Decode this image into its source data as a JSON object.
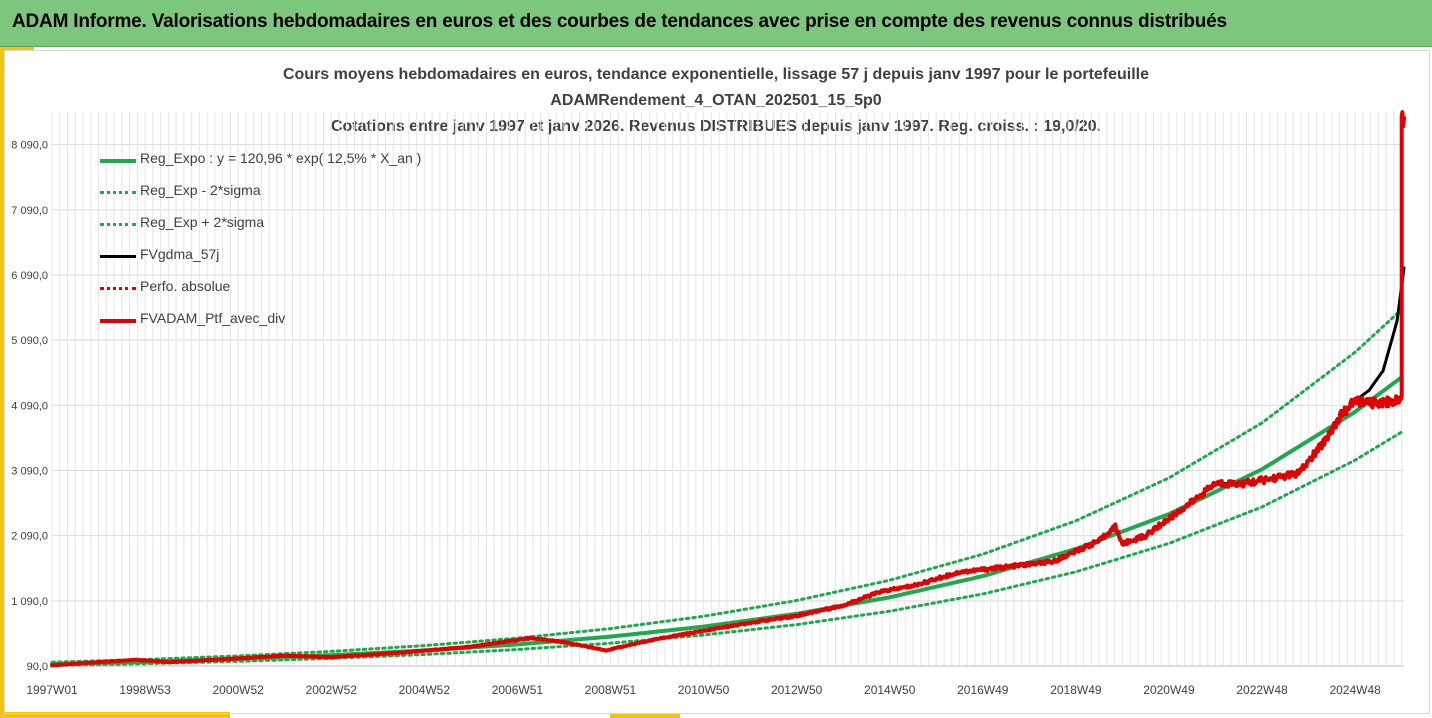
{
  "banner": {
    "title": "ADAM Informe. Valorisations hebdomadaires en euros et des courbes de tendances avec prise en compte des revenus connus distribués"
  },
  "colors": {
    "banner": "#7dc67d",
    "accent": "#f1c40f",
    "green": "#1fa84f",
    "black": "#000000",
    "red": "#e00000",
    "grid": "#d9d9d9",
    "text": "#404040"
  },
  "chart_data": {
    "type": "line",
    "title_lines": [
      "Cours moyens hebdomadaires  en euros, tendance exponentielle, lissage 57 j depuis janv 1997 pour le portefeuille",
      "ADAMRendement_4_OTAN_202501_15_5p0",
      "Cotations entre janv 1997 et janv 2026. Revenus DISTRIBUES depuis janv 1997. Reg. croiss. : 19,0/20."
    ],
    "x_range": [
      1997.0,
      2026.05
    ],
    "ylim": [
      90,
      8590
    ],
    "y_ticks": [
      {
        "value": 90,
        "label": "90,0"
      },
      {
        "value": 1090,
        "label": "1 090,0"
      },
      {
        "value": 2090,
        "label": "2 090,0"
      },
      {
        "value": 3090,
        "label": "3 090,0"
      },
      {
        "value": 4090,
        "label": "4 090,0"
      },
      {
        "value": 5090,
        "label": "5 090,0"
      },
      {
        "value": 6090,
        "label": "6 090,0"
      },
      {
        "value": 7090,
        "label": "7 090,0"
      },
      {
        "value": 8090,
        "label": "8 090,0"
      }
    ],
    "x_ticks": [
      {
        "value": 1997.0,
        "label": "1997W01"
      },
      {
        "value": 1999.0,
        "label": "1998W53"
      },
      {
        "value": 2001.0,
        "label": "2000W52"
      },
      {
        "value": 2003.0,
        "label": "2002W52"
      },
      {
        "value": 2005.0,
        "label": "2004W52"
      },
      {
        "value": 2007.0,
        "label": "2006W51"
      },
      {
        "value": 2009.0,
        "label": "2008W51"
      },
      {
        "value": 2011.0,
        "label": "2010W50"
      },
      {
        "value": 2013.0,
        "label": "2012W50"
      },
      {
        "value": 2015.0,
        "label": "2014W50"
      },
      {
        "value": 2017.0,
        "label": "2016W49"
      },
      {
        "value": 2019.0,
        "label": "2018W49"
      },
      {
        "value": 2021.0,
        "label": "2020W49"
      },
      {
        "value": 2023.0,
        "label": "2022W48"
      },
      {
        "value": 2025.0,
        "label": "2024W48"
      }
    ],
    "series": [
      {
        "name": "Reg_Expo : y = 120,96 * exp( 12,5% *  X_an )",
        "color": "#1fa84f",
        "style": "solid",
        "width": 4,
        "x": [
          1997.0,
          1999.0,
          2001.0,
          2003.0,
          2005.0,
          2007.0,
          2009.0,
          2011.0,
          2013.0,
          2015.0,
          2017.0,
          2019.0,
          2021.0,
          2023.0,
          2025.0,
          2026.0
        ],
        "values": [
          121,
          155,
          199,
          256,
          328,
          421,
          541,
          694,
          891,
          1144,
          1469,
          1886,
          2421,
          3108,
          3990,
          4521
        ]
      },
      {
        "name": "Reg_Exp - 2*sigma",
        "color": "#1fa84f",
        "style": "dotted",
        "width": 3,
        "x": [
          1997.0,
          1999.0,
          2001.0,
          2003.0,
          2005.0,
          2007.0,
          2009.0,
          2011.0,
          2013.0,
          2015.0,
          2017.0,
          2019.0,
          2021.0,
          2023.0,
          2025.0,
          2026.0
        ],
        "values": [
          98,
          126,
          162,
          208,
          267,
          343,
          440,
          565,
          725,
          931,
          1195,
          1535,
          1971,
          2531,
          3249,
          3680
        ]
      },
      {
        "name": "Reg_Exp + 2*sigma",
        "color": "#1fa84f",
        "style": "dotted",
        "width": 3,
        "x": [
          1997.0,
          1999.0,
          2001.0,
          2003.0,
          2005.0,
          2007.0,
          2009.0,
          2011.0,
          2013.0,
          2015.0,
          2017.0,
          2019.0,
          2021.0,
          2023.0,
          2025.0,
          2026.0
        ],
        "values": [
          148,
          190,
          244,
          314,
          403,
          517,
          664,
          853,
          1095,
          1406,
          1805,
          2318,
          2976,
          3821,
          4905,
          5560
        ]
      },
      {
        "name": "FVgdma_57j",
        "color": "#000000",
        "style": "solid",
        "width": 3,
        "x": [
          1997.0,
          1998.0,
          1998.8,
          1999.5,
          2000.5,
          2002.0,
          2003.0,
          2004.5,
          2006.0,
          2007.3,
          2008.0,
          2008.9,
          2010.0,
          2011.2,
          2012.0,
          2013.0,
          2014.0,
          2014.8,
          2015.5,
          2016.5,
          2017.5,
          2018.5,
          2019.5,
          2019.85,
          2020.0,
          2020.5,
          2021.5,
          2022.0,
          2022.6,
          2023.1,
          2023.8,
          2024.3,
          2024.7,
          2025.0,
          2025.3,
          2025.6,
          2025.9,
          2026.05
        ],
        "values": [
          100,
          150,
          185,
          150,
          185,
          250,
          225,
          295,
          385,
          520,
          455,
          330,
          505,
          655,
          755,
          860,
          1020,
          1230,
          1320,
          1530,
          1610,
          1690,
          2010,
          2230,
          1960,
          2090,
          2610,
          2890,
          2890,
          2950,
          3050,
          3500,
          3940,
          4160,
          4320,
          4620,
          5380,
          6200
        ]
      },
      {
        "name": "Perfo. absolue",
        "color": "#e00000",
        "style": "dotted",
        "width": 3,
        "x": [
          1997.0,
          1998.0,
          1998.8,
          1999.5,
          2000.5,
          2002.0,
          2003.0,
          2004.5,
          2006.0,
          2007.3,
          2008.0,
          2008.9,
          2010.0,
          2011.2,
          2012.0,
          2013.0,
          2014.0,
          2014.8,
          2015.5,
          2016.5,
          2017.5,
          2018.5,
          2019.5,
          2019.85,
          2020.0,
          2020.5,
          2021.5,
          2022.0,
          2022.6,
          2023.1,
          2023.8,
          2024.3,
          2024.7,
          2025.0,
          2025.3,
          2025.6,
          2025.9,
          2026.0,
          2026.0,
          2026.05
        ],
        "values": [
          100,
          150,
          185,
          150,
          185,
          250,
          225,
          295,
          385,
          520,
          455,
          330,
          505,
          655,
          755,
          860,
          1020,
          1230,
          1320,
          1530,
          1610,
          1690,
          2010,
          2230,
          1960,
          2090,
          2610,
          2890,
          2890,
          2950,
          3050,
          3500,
          3940,
          4160,
          4120,
          4140,
          4160,
          4220,
          8500,
          8500
        ]
      },
      {
        "name": "FVADAM_Ptf_avec_div",
        "color": "#e00000",
        "style": "solid",
        "width": 4,
        "x": [
          1997.0,
          1998.0,
          1998.8,
          1999.5,
          2000.5,
          2002.0,
          2003.0,
          2004.5,
          2006.0,
          2007.3,
          2008.0,
          2008.9,
          2010.0,
          2011.2,
          2012.0,
          2013.0,
          2014.0,
          2014.8,
          2015.5,
          2016.5,
          2017.5,
          2018.5,
          2019.5,
          2019.85,
          2020.0,
          2020.5,
          2021.5,
          2022.0,
          2022.6,
          2023.1,
          2023.8,
          2024.3,
          2024.7,
          2025.0,
          2025.3,
          2025.6,
          2025.9,
          2026.0,
          2026.0,
          2026.05
        ],
        "values": [
          100,
          150,
          185,
          150,
          185,
          250,
          225,
          295,
          385,
          520,
          455,
          330,
          505,
          655,
          755,
          860,
          1020,
          1230,
          1320,
          1530,
          1610,
          1690,
          2010,
          2230,
          1960,
          2090,
          2610,
          2890,
          2890,
          2950,
          3050,
          3500,
          3940,
          4160,
          4120,
          4140,
          4160,
          4220,
          8500,
          8500
        ]
      }
    ],
    "legend_position": "top-left"
  }
}
